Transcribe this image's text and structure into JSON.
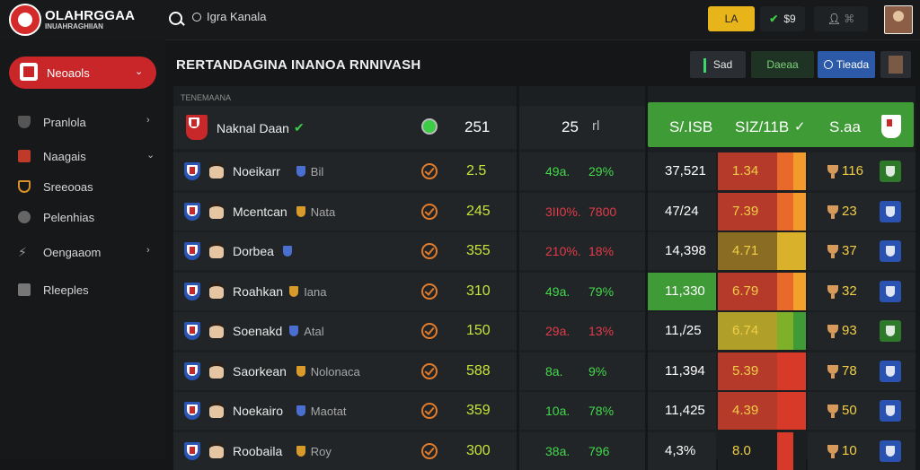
{
  "header": {
    "brand_title": "OLAHRGGAA",
    "brand_subtitle": "INUAHRAGHIIAN",
    "search_text": "Igra Kanala",
    "btn_yellow_label": "LA",
    "btn_green_label": "$9",
    "btn_user_label": "",
    "icons": [
      "logo-icon",
      "search-icon",
      "check-icon",
      "user-icon",
      "avatar"
    ]
  },
  "sidebar": {
    "active": {
      "label": "Neoaols",
      "icon": "flag-icon"
    },
    "items": [
      {
        "label": "Pranlola",
        "icon": "shield-icon"
      },
      {
        "label": "Naagais",
        "icon": "flag-icon"
      },
      {
        "label": "Sreeooas",
        "icon": "shield-icon"
      },
      {
        "label": "Pelenhias",
        "icon": "ball-icon"
      },
      {
        "label": "Oengaaom",
        "icon": "bolt-icon"
      },
      {
        "label": "Rleeples",
        "icon": "user-icon"
      }
    ]
  },
  "main": {
    "title": "RERTANDAGINA INANOA RNNIVASH",
    "column_label": "TENEMAANA",
    "buttons": {
      "b1": "Sad",
      "b2": "Daeaa",
      "b3": "Tieada"
    },
    "top_row": {
      "name": "Naknal Daan",
      "value": "251",
      "mid": "25",
      "mid_suffix": "rl",
      "stat1": "S/.ISB",
      "stat2": "SIZ/11B",
      "stat3": "S.aa"
    },
    "rows": [
      {
        "name": "Noeikarr",
        "sub": "Bil",
        "value": "2.5",
        "pct1": "49a.",
        "pct2": "29%",
        "pct_color": "#43d94b",
        "stat": "37,521",
        "heat": "1.34",
        "rval": "116",
        "badge": "#2f7a2a"
      },
      {
        "name": "Mcentcan",
        "sub": "Nata",
        "value": "245",
        "pct1": "3II0%.",
        "pct2": "7800",
        "pct_color": "#e23b4a",
        "stat": "47/24",
        "heat": "7.39",
        "rval": "23",
        "badge": "#2a52b0"
      },
      {
        "name": "Dorbea",
        "sub": "",
        "value": "355",
        "pct1": "210%.",
        "pct2": "18%",
        "pct_color": "#e23b4a",
        "stat": "14,398",
        "heat": "4.71",
        "rval": "37",
        "badge": "#2a52b0"
      },
      {
        "name": "Roahkan",
        "sub": "Iana",
        "value": "310",
        "pct1": "49a.",
        "pct2": "79%",
        "pct_color": "#43d94b",
        "stat": "11,330",
        "heat": "6.79",
        "rval": "32",
        "badge": "#2a52b0"
      },
      {
        "name": "Soenakd",
        "sub": "Atal",
        "value": "150",
        "pct1": "29a.",
        "pct2": "13%",
        "pct_color": "#e23b4a",
        "stat": "11,/25",
        "heat": "6.74",
        "rval": "93",
        "badge": "#2f7a2a"
      },
      {
        "name": "Saorkean",
        "sub": "Nolonaca",
        "value": "588",
        "pct1": "8a.",
        "pct2": "9%",
        "pct_color": "#43d94b",
        "stat": "11,394",
        "heat": "5.39",
        "rval": "78",
        "badge": "#2a52b0"
      },
      {
        "name": "Noekairo",
        "sub": "Maotat",
        "value": "359",
        "pct1": "10a.",
        "pct2": "78%",
        "pct_color": "#43d94b",
        "stat": "11,425",
        "heat": "4.39",
        "rval": "50",
        "badge": "#2a52b0"
      },
      {
        "name": "Roobaila",
        "sub": "Roy",
        "value": "300",
        "pct1": "38a.",
        "pct2": "796",
        "pct_color": "#43d94b",
        "stat": "4,3%",
        "heat": "8.0",
        "rval": "10",
        "badge": "#2a52b0"
      }
    ]
  }
}
